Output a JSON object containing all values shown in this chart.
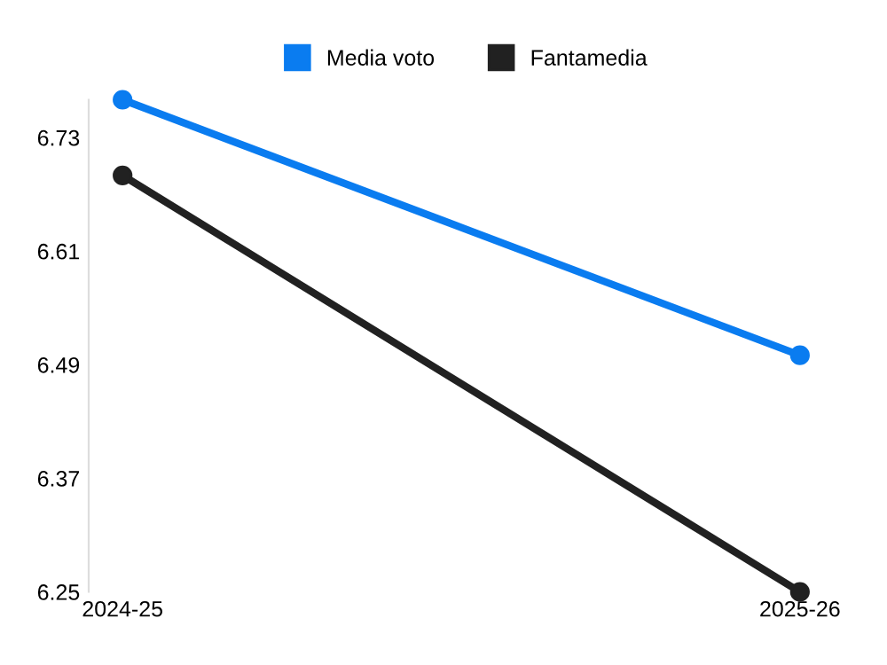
{
  "chart_data": {
    "type": "line",
    "categories": [
      "2024-25",
      "2025-26"
    ],
    "series": [
      {
        "name": "Media voto",
        "color": "#0a7cf0",
        "values": [
          6.77,
          6.5
        ]
      },
      {
        "name": "Fantamedia",
        "color": "#212121",
        "values": [
          6.69,
          6.25
        ]
      }
    ],
    "ylim": [
      6.25,
      6.77
    ],
    "yticks": [
      6.25,
      6.37,
      6.49,
      6.61,
      6.73
    ],
    "grid": false,
    "legend": "top",
    "marker": "circle",
    "line_style": "solid"
  }
}
